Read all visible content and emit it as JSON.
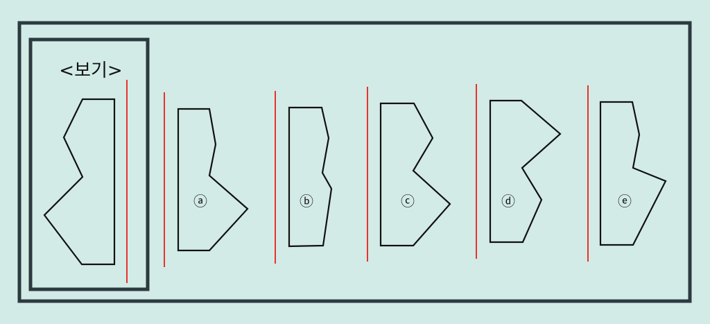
{
  "reference": {
    "label": "<보기>"
  },
  "choices": [
    {
      "key": "a",
      "label": "ⓐ"
    },
    {
      "key": "b",
      "label": "ⓑ"
    },
    {
      "key": "c",
      "label": "ⓒ"
    },
    {
      "key": "d",
      "label": "ⓓ"
    },
    {
      "key": "e",
      "label": "ⓔ"
    }
  ],
  "colors": {
    "background": "#d2ebe6",
    "frame": "#2c3a40",
    "shape_stroke": "#111111",
    "reflection_line": "#e8322e"
  }
}
